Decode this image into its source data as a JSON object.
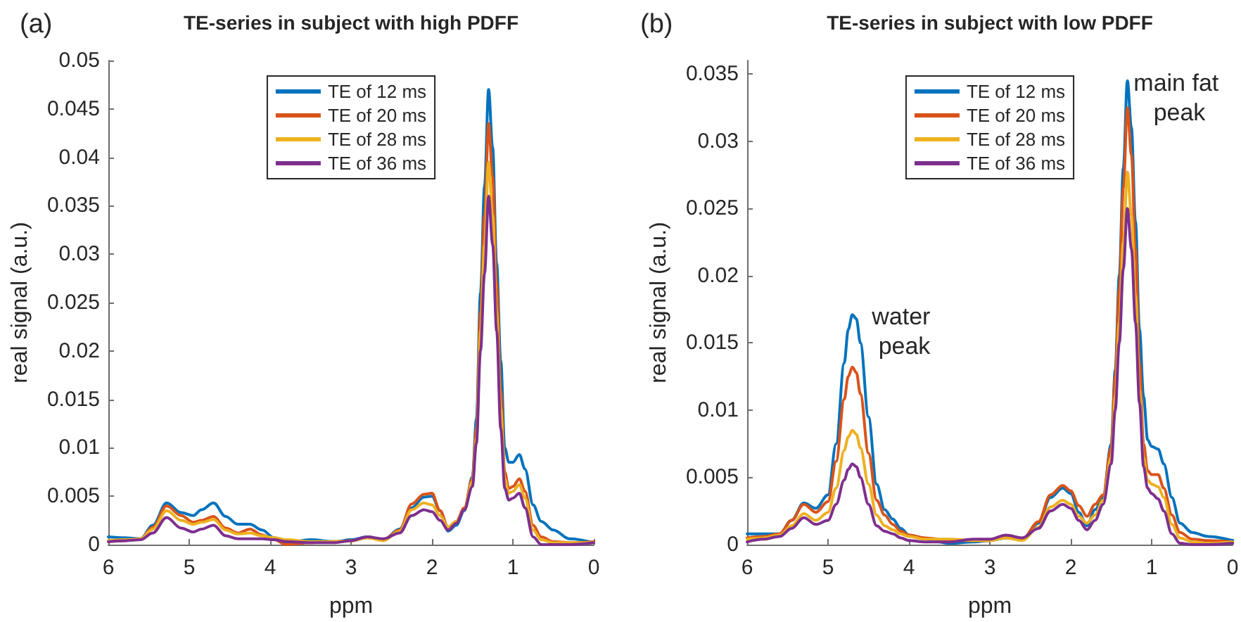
{
  "chart_data": [
    {
      "type": "line",
      "title": "TE-series in subject with high PDFF",
      "xlabel": "ppm",
      "ylabel": "real signal (a.u.)",
      "annotations": [
        "(a)"
      ],
      "x": [
        6,
        5.8,
        5.6,
        5.45,
        5.28,
        5.1,
        4.95,
        4.85,
        4.7,
        4.55,
        4.4,
        4.25,
        4.1,
        3.95,
        3.8,
        3.5,
        3.2,
        3,
        2.8,
        2.6,
        2.4,
        2.25,
        2.1,
        2,
        1.9,
        1.8,
        1.7,
        1.6,
        1.5,
        1.45,
        1.4,
        1.35,
        1.3,
        1.25,
        1.2,
        1.15,
        1.1,
        1.05,
        1,
        0.92,
        0.85,
        0.75,
        0.65,
        0.5,
        0.3,
        0
      ],
      "series": [
        {
          "name": "TE of 12 ms",
          "color": "#0072bd",
          "values": [
            0.0008,
            0.0007,
            0.0006,
            0.002,
            0.0043,
            0.0033,
            0.003,
            0.0036,
            0.0043,
            0.0029,
            0.0021,
            0.0021,
            0.0015,
            0.0007,
            0.0002,
            0.0005,
            0.0003,
            0.0005,
            0.0008,
            0.0005,
            0.0016,
            0.0038,
            0.0049,
            0.005,
            0.0035,
            0.0014,
            0.002,
            0.0035,
            0.007,
            0.013,
            0.026,
            0.037,
            0.047,
            0.041,
            0.029,
            0.019,
            0.01,
            0.0085,
            0.0085,
            0.0093,
            0.0078,
            0.0041,
            0.0024,
            0.0015,
            0.0006,
            0.0002
          ]
        },
        {
          "name": "TE of 20 ms",
          "color": "#d95319",
          "values": [
            0.0003,
            0.0004,
            0.0006,
            0.0018,
            0.004,
            0.003,
            0.0023,
            0.0025,
            0.0029,
            0.0017,
            0.0012,
            0.0016,
            0.001,
            0.0005,
            0,
            0.0002,
            0.0003,
            0.0004,
            0.0007,
            0.0005,
            0.0015,
            0.0042,
            0.0052,
            0.0053,
            0.0035,
            0.0018,
            0.0024,
            0.0038,
            0.0068,
            0.012,
            0.024,
            0.034,
            0.0435,
            0.038,
            0.027,
            0.016,
            0.0075,
            0.0058,
            0.006,
            0.0068,
            0.0055,
            0.002,
            0.0008,
            0.0003,
            0.0002,
            0.0003
          ]
        },
        {
          "name": "TE of 28 ms",
          "color": "#edb120",
          "values": [
            0.0004,
            0.0005,
            0.0006,
            0.0016,
            0.0035,
            0.0025,
            0.0021,
            0.0023,
            0.0026,
            0.0015,
            0.0011,
            0.0012,
            0.0009,
            0.0007,
            0.0005,
            0.0003,
            0.0003,
            0.0004,
            0.0007,
            0.0004,
            0.0014,
            0.0036,
            0.0043,
            0.0041,
            0.003,
            0.0018,
            0.0024,
            0.0036,
            0.0065,
            0.011,
            0.022,
            0.031,
            0.0395,
            0.034,
            0.024,
            0.014,
            0.0068,
            0.0053,
            0.0055,
            0.0062,
            0.0048,
            0.0015,
            0.0005,
            0.0002,
            0.0002,
            0.0002
          ]
        },
        {
          "name": "TE of 36 ms",
          "color": "#7e2f8e",
          "values": [
            0.0003,
            0.0004,
            0.0005,
            0.0012,
            0.0028,
            0.0017,
            0.0013,
            0.0016,
            0.002,
            0.0009,
            0.0006,
            0.0006,
            0.0006,
            0.0005,
            0.0003,
            0.0002,
            0.0002,
            0.0004,
            0.0008,
            0.0006,
            0.0012,
            0.003,
            0.0036,
            0.0034,
            0.0025,
            0.0015,
            0.0022,
            0.0036,
            0.006,
            0.0105,
            0.02,
            0.028,
            0.036,
            0.031,
            0.022,
            0.012,
            0.0058,
            0.0046,
            0.0048,
            0.0053,
            0.0038,
            0.0008,
            0,
            0,
            0,
            0.0002
          ]
        }
      ],
      "xlim": [
        6,
        0
      ],
      "xticks": [
        6,
        5,
        4,
        3,
        2,
        1,
        0
      ],
      "ylim": [
        0,
        0.05
      ],
      "yticks": [
        0,
        0.005,
        0.01,
        0.015,
        0.02,
        0.025,
        0.03,
        0.035,
        0.04,
        0.045,
        0.05
      ],
      "legend": "top"
    },
    {
      "type": "line",
      "title": "TE-series in subject with low PDFF",
      "xlabel": "ppm",
      "ylabel": "real signal (a.u.)",
      "annotations": [
        "(b)",
        {
          "text": "water peak",
          "x": 4.7,
          "y": 0.0171
        },
        {
          "text": "main fat peak",
          "x": 1.3,
          "y": 0.0345
        }
      ],
      "x": [
        6,
        5.8,
        5.6,
        5.45,
        5.3,
        5.15,
        5,
        4.9,
        4.8,
        4.75,
        4.7,
        4.65,
        4.6,
        4.5,
        4.4,
        4.3,
        4.2,
        4.1,
        4,
        3.8,
        3.5,
        3.2,
        3,
        2.8,
        2.6,
        2.4,
        2.25,
        2.1,
        2,
        1.9,
        1.8,
        1.7,
        1.6,
        1.5,
        1.45,
        1.4,
        1.35,
        1.3,
        1.25,
        1.2,
        1.15,
        1.1,
        1.05,
        1,
        0.92,
        0.85,
        0.75,
        0.65,
        0.5,
        0.3,
        0
      ],
      "series": [
        {
          "name": "TE of 12 ms",
          "color": "#0072bd",
          "values": [
            0.0008,
            0.0008,
            0.0008,
            0.0018,
            0.0031,
            0.0027,
            0.0037,
            0.0075,
            0.0135,
            0.016,
            0.0171,
            0.0168,
            0.015,
            0.0095,
            0.0045,
            0.0026,
            0.0019,
            0.0012,
            0.0007,
            0.0004,
            0.0001,
            0.0002,
            0.0003,
            0.0005,
            0.0004,
            0.0016,
            0.0035,
            0.0042,
            0.0038,
            0.0024,
            0.0014,
            0.0026,
            0.0035,
            0.0075,
            0.013,
            0.02,
            0.028,
            0.0345,
            0.031,
            0.024,
            0.016,
            0.011,
            0.0078,
            0.0073,
            0.0071,
            0.006,
            0.0035,
            0.0016,
            0.0009,
            0.0006,
            0.0003
          ]
        },
        {
          "name": "TE of 20 ms",
          "color": "#d95319",
          "values": [
            0.0005,
            0.0006,
            0.0008,
            0.0018,
            0.003,
            0.0024,
            0.0032,
            0.0062,
            0.0108,
            0.0125,
            0.0132,
            0.0128,
            0.0112,
            0.0068,
            0.0033,
            0.0022,
            0.0015,
            0.001,
            0.0007,
            0.0005,
            0.0003,
            0.0003,
            0.0003,
            0.0006,
            0.0004,
            0.0017,
            0.0037,
            0.0044,
            0.004,
            0.0029,
            0.0021,
            0.003,
            0.0037,
            0.0072,
            0.0125,
            0.019,
            0.0265,
            0.0325,
            0.029,
            0.022,
            0.0135,
            0.0075,
            0.0055,
            0.0052,
            0.0052,
            0.0042,
            0.0022,
            0.0009,
            0.0004,
            0.0003,
            0.0002
          ]
        },
        {
          "name": "TE of 28 ms",
          "color": "#edb120",
          "values": [
            0.0004,
            0.0005,
            0.0007,
            0.0014,
            0.0023,
            0.0018,
            0.0024,
            0.0042,
            0.007,
            0.008,
            0.0085,
            0.0082,
            0.0072,
            0.0045,
            0.0022,
            0.0014,
            0.0011,
            0.0008,
            0.0006,
            0.0004,
            0.0004,
            0.0003,
            0.0003,
            0.0005,
            0.0003,
            0.0013,
            0.0028,
            0.0033,
            0.003,
            0.0021,
            0.0016,
            0.0022,
            0.0033,
            0.0065,
            0.011,
            0.0165,
            0.0225,
            0.0277,
            0.0245,
            0.0185,
            0.0115,
            0.0065,
            0.0048,
            0.0045,
            0.0043,
            0.0035,
            0.0015,
            0.0005,
            0.0002,
            0.0001,
            0.0002
          ]
        },
        {
          "name": "TE of 36 ms",
          "color": "#7e2f8e",
          "values": [
            0.0002,
            0.0004,
            0.0006,
            0.0012,
            0.002,
            0.0015,
            0.0018,
            0.003,
            0.0048,
            0.0056,
            0.006,
            0.0058,
            0.005,
            0.003,
            0.0014,
            0.001,
            0.0008,
            0.0005,
            0.0003,
            0.0002,
            0.0002,
            0.0004,
            0.0004,
            0.0007,
            0.0005,
            0.0012,
            0.0025,
            0.003,
            0.0027,
            0.0018,
            0.0011,
            0.0018,
            0.003,
            0.006,
            0.01,
            0.015,
            0.0205,
            0.025,
            0.022,
            0.0165,
            0.0105,
            0.0058,
            0.0042,
            0.0038,
            0.0034,
            0.0025,
            0.0008,
            0.0001,
            0,
            0,
            0.0001
          ]
        }
      ],
      "xlim": [
        6,
        0
      ],
      "xticks": [
        6,
        5,
        4,
        3,
        2,
        1,
        0
      ],
      "ylim": [
        0,
        0.036
      ],
      "yticks": [
        0,
        0.005,
        0.01,
        0.015,
        0.02,
        0.025,
        0.03,
        0.035
      ],
      "legend": "top"
    }
  ]
}
